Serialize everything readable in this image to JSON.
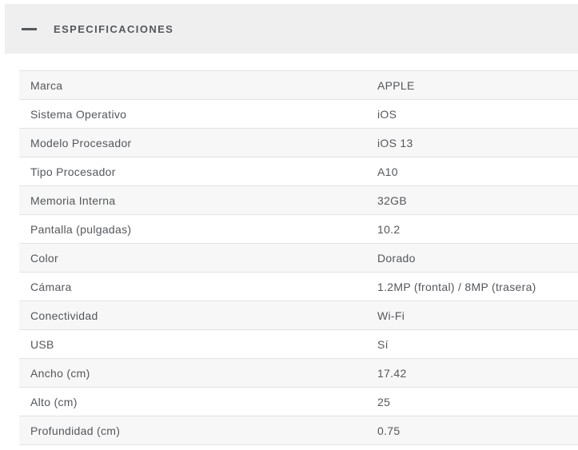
{
  "header": {
    "title": "ESPECIFICACIONES"
  },
  "icons": {
    "title_dash": "—"
  },
  "colors": {
    "header_background": "#efefef",
    "row_stripe": "#f7f7f7",
    "row_border": "#e2e2e2",
    "text": "#54575c"
  },
  "table": {
    "rows": [
      {
        "label": "Marca",
        "value": "APPLE"
      },
      {
        "label": "Sistema Operativo",
        "value": "iOS"
      },
      {
        "label": "Modelo Procesador",
        "value": "iOS 13"
      },
      {
        "label": "Tipo Procesador",
        "value": "A10"
      },
      {
        "label": "Memoria Interna",
        "value": "32GB"
      },
      {
        "label": "Pantalla (pulgadas)",
        "value": "10.2"
      },
      {
        "label": "Color",
        "value": "Dorado"
      },
      {
        "label": "Cámara",
        "value": "1.2MP (frontal) / 8MP (trasera)"
      },
      {
        "label": "Conectividad",
        "value": "Wi-Fi"
      },
      {
        "label": "USB",
        "value": "Sí"
      },
      {
        "label": "Ancho (cm)",
        "value": "17.42"
      },
      {
        "label": "Alto (cm)",
        "value": "25"
      },
      {
        "label": "Profundidad (cm)",
        "value": "0.75"
      }
    ]
  }
}
